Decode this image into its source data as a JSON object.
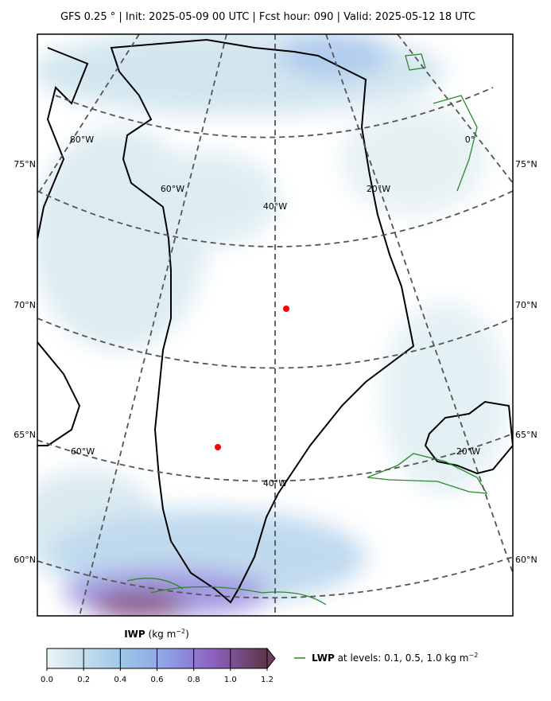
{
  "header": {
    "title": "GFS 0.25 °  |  Init: 2025-05-09 00 UTC  |  Fcst hour: 090  |  Valid: 2025-05-12 18 UTC"
  },
  "map": {
    "lat_labels_left": [
      "75°N",
      "70°N",
      "65°N",
      "60°N"
    ],
    "lat_labels_right": [
      "75°N",
      "70°N",
      "65°N",
      "60°N"
    ],
    "lon_labels": [
      "80°W",
      "60°W",
      "40°W",
      "20°W",
      "0°",
      "60°W",
      "20°W",
      "40°W"
    ]
  },
  "colorbar": {
    "label": "IWP",
    "units": "(kg m",
    "units_exp": "−2",
    "units_close": ")",
    "lim": [
      0,
      1.2
    ],
    "colors": [
      "#e4f0f3",
      "#b8dbe8",
      "#94b8e8",
      "#9a82dc",
      "#8a55a8",
      "#6e3a60"
    ],
    "ticks": [
      {
        "value": 0,
        "label": "0.0"
      },
      0.2,
      0.4,
      0.6,
      0.8,
      {
        "value": 1,
        "label": "1.0"
      },
      1.2
    ]
  },
  "legend": {
    "name": "LWP",
    "text": " at levels: 0.1, 0.5, 1.0  kg m",
    "exp": "−2",
    "color": "#2a8a2a"
  }
}
